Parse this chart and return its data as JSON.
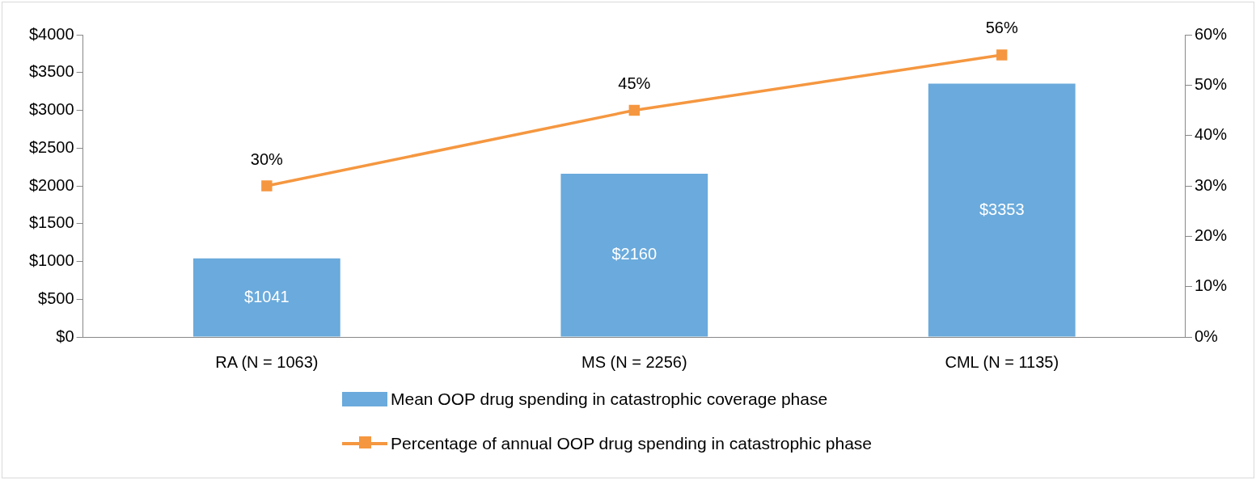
{
  "chart_data": {
    "type": "bar",
    "categories": [
      "RA (N = 1063)",
      "MS (N = 2256)",
      "CML (N = 1135)"
    ],
    "series": [
      {
        "name": "Mean OOP drug spending in catastrophic coverage phase",
        "color": "#6aaadc",
        "values": [
          1041,
          2160,
          3353
        ],
        "value_labels": [
          "$1041",
          "$2160",
          "$3353"
        ]
      },
      {
        "name": "Percentage of annual OOP drug spending in catastrophic phase",
        "type": "line",
        "axis": "y2",
        "color": "#f59740",
        "values": [
          30,
          45,
          56
        ],
        "value_labels": [
          "30%",
          "45%",
          "56%"
        ],
        "marker": "square"
      }
    ],
    "ylim": [
      0,
      4000
    ],
    "yticks": [
      {
        "value": 0,
        "label": "$0"
      },
      {
        "value": 500,
        "label": "$500"
      },
      {
        "value": 1000,
        "label": "$1000"
      },
      {
        "value": 1500,
        "label": "$1500"
      },
      {
        "value": 2000,
        "label": "$2000"
      },
      {
        "value": 2500,
        "label": "$2500"
      },
      {
        "value": 3000,
        "label": "$3000"
      },
      {
        "value": 3500,
        "label": "$3500"
      },
      {
        "value": 4000,
        "label": "$4000"
      }
    ],
    "y2lim": [
      0,
      60
    ],
    "y2ticks": [
      {
        "value": 0,
        "label": "0%"
      },
      {
        "value": 10,
        "label": "10%"
      },
      {
        "value": 20,
        "label": "20%"
      },
      {
        "value": 30,
        "label": "30%"
      },
      {
        "value": 40,
        "label": "40%"
      },
      {
        "value": 50,
        "label": "50%"
      },
      {
        "value": 60,
        "label": "60%"
      }
    ],
    "grid": false,
    "legend": "bottom"
  }
}
